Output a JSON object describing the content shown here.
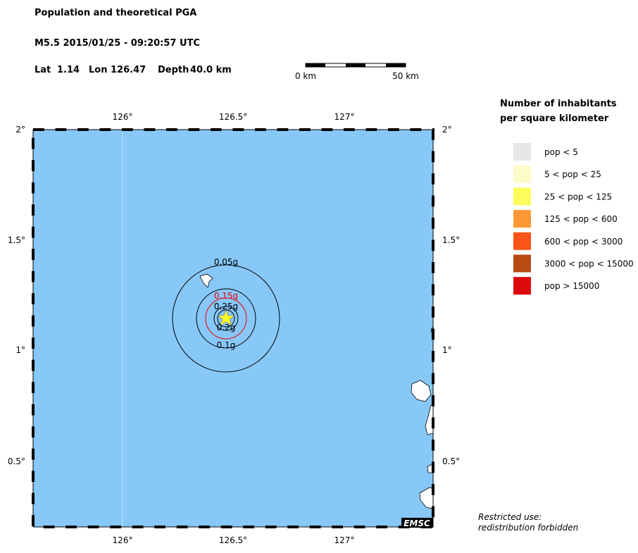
{
  "header": {
    "title": "Population and theoretical PGA",
    "event": "M5.5  2015/01/25 - 09:20:57 UTC",
    "lat_label": "Lat",
    "lat": 1.14,
    "lon_label": "Lon",
    "lon": 126.47,
    "depth_label": "Depth",
    "depth": "40.0 km"
  },
  "scale_bar": {
    "start": "0 km",
    "end": "50 km"
  },
  "map": {
    "x_ticks": [
      "126°",
      "126.5°",
      "127°"
    ],
    "y_ticks": [
      "2°",
      "1.5°",
      "1°",
      "0.5°"
    ],
    "contours": [
      "0.05g",
      "0.15g",
      "0.25g",
      "0.2g",
      "0.1g"
    ],
    "badge": "EMSC"
  },
  "legend": {
    "title": [
      "Number of inhabitants",
      "per square kilometer"
    ],
    "items": [
      {
        "label": "pop < 5",
        "color": "#e6e6e6"
      },
      {
        "label": "5 < pop < 25",
        "color": "#fdfbc8"
      },
      {
        "label": "25 < pop < 125",
        "color": "#fcfc5a"
      },
      {
        "label": "125 < pop < 600",
        "color": "#fb9833"
      },
      {
        "label": "600 < pop < 3000",
        "color": "#fb5418"
      },
      {
        "label": "3000 < pop < 15000",
        "color": "#b84a14"
      },
      {
        "label": "pop > 15000",
        "color": "#dc0a0a"
      }
    ]
  },
  "notice": [
    "Restricted use:",
    "redistribution forbidden"
  ]
}
